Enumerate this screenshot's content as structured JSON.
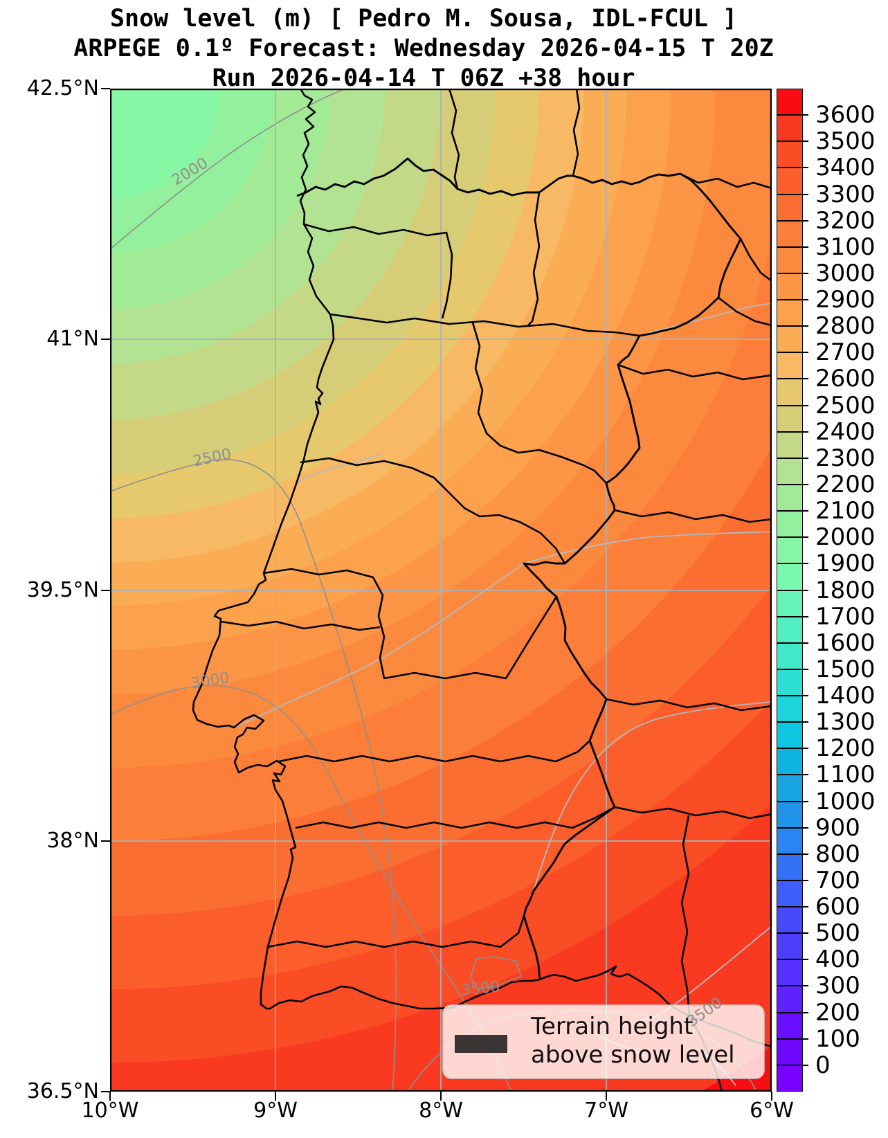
{
  "title": {
    "line1": "Snow level (m) [ Pedro M. Sousa, IDL-FCUL ]",
    "line2": "ARPEGE 0.1º Forecast: Wednesday 2026-04-15 T 20Z",
    "line3": "Run 2026-04-14 T 06Z +38 hour"
  },
  "axes": {
    "y_ticks": [
      "42.5°N",
      "41°N",
      "39.5°N",
      "38°N",
      "36.5°N"
    ],
    "x_ticks": [
      "10°W",
      "9°W",
      "8°W",
      "7°W",
      "6°W"
    ]
  },
  "colorbar": {
    "tick_labels": [
      "0",
      "100",
      "200",
      "300",
      "400",
      "500",
      "600",
      "700",
      "800",
      "900",
      "1000",
      "1100",
      "1200",
      "1300",
      "1400",
      "1500",
      "1600",
      "1700",
      "1800",
      "1900",
      "2000",
      "2100",
      "2200",
      "2300",
      "2400",
      "2500",
      "2600",
      "2700",
      "2800",
      "2900",
      "3000",
      "3100",
      "3200",
      "3300",
      "3400",
      "3500",
      "3600"
    ],
    "min_value": 0,
    "max_value": 3600,
    "step": 100,
    "segments": [
      "#7A00FF",
      "#7007FF",
      "#670FFE",
      "#5F22FE",
      "#5730FD",
      "#4F3DFC",
      "#4749FB",
      "#3E5EF9",
      "#3471F6",
      "#2A84F2",
      "#2193E8",
      "#18A5E1",
      "#0FB5E0",
      "#0CC6E2",
      "#1DD4DC",
      "#2EDFD3",
      "#40E9CA",
      "#52EFC2",
      "#66F4B9",
      "#79F9AE",
      "#86F6A5",
      "#93F09C",
      "#A2EA96",
      "#B1E392",
      "#C4D987",
      "#D5CD77",
      "#E6C96D",
      "#F7B963",
      "#FBAD55",
      "#FCA14C",
      "#FC9545",
      "#FC8A3E",
      "#FC7E38",
      "#FB6E31",
      "#FB5D2B",
      "#FA4C25",
      "#FA3A20",
      "#F90D10"
    ]
  },
  "map": {
    "contour_labels": [
      {
        "text": "2000"
      },
      {
        "text": "2500"
      },
      {
        "text": "3000"
      },
      {
        "text": "3500"
      },
      {
        "text": "3500"
      }
    ],
    "grid_color": "#aab2ba",
    "boundary_color": "#000000",
    "contour_line_color": "#8f8f8f",
    "river_color": "#b5bbc0"
  },
  "legend": {
    "line1": "Terrain height",
    "line2": "above snow level",
    "swatch_color": "#3a3435"
  },
  "chart_data": {
    "type": "heatmap",
    "title": "Snow level (m) [ Pedro M. Sousa, IDL-FCUL ]",
    "model": "ARPEGE 0.1º",
    "valid_time": "Wednesday 2026-04-15 T 20Z",
    "run": "2026-04-14 T 06Z",
    "lead_hours": 38,
    "lon_extent_deg_west": [
      10,
      6
    ],
    "lat_extent_deg_north": [
      36.5,
      42.5
    ],
    "colorbar_range_m": [
      0,
      3600
    ],
    "colorbar_step_m": 100,
    "labeled_contours_m": [
      2000,
      2500,
      3000,
      3500
    ],
    "field_description": "Snow level increases from ~1900 m in the NW (Atlantic, Galicia) to >3600 m in the S/SE of the Iberian domain",
    "grid": true,
    "legend_position": "lower right"
  }
}
